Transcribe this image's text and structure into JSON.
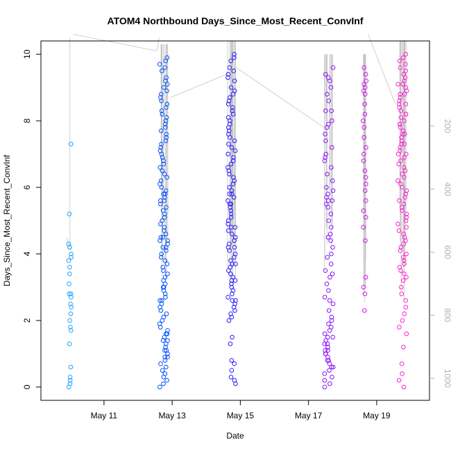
{
  "chart_data": {
    "type": "scatter",
    "title": "ATOM4 Northbound Days_Since_Most_Recent_ConvInf",
    "xlabel": "Date",
    "ylabel": "Days_Since_Most_Recent_ConvInf",
    "x_unit": "days since May 10 00:00",
    "xlim": [
      -0.85,
      10.55
    ],
    "ylim": [
      -0.4,
      10.4
    ],
    "x_ticks": [
      {
        "value": 1,
        "label": "May 11"
      },
      {
        "value": 3,
        "label": "May 13"
      },
      {
        "value": 5,
        "label": "May 15"
      },
      {
        "value": 7,
        "label": "May 17"
      },
      {
        "value": 9,
        "label": "May 19"
      }
    ],
    "y_ticks": [
      {
        "value": 0,
        "label": "0"
      },
      {
        "value": 2,
        "label": "2"
      },
      {
        "value": 4,
        "label": "4"
      },
      {
        "value": 6,
        "label": "6"
      },
      {
        "value": 8,
        "label": "8"
      },
      {
        "value": 10,
        "label": "10"
      }
    ],
    "secondary_axis": {
      "side": "right",
      "color": "#b0b0b0",
      "range": [
        -70,
        1070
      ],
      "reversed": true,
      "ticks": [
        {
          "value": 200,
          "label": "200"
        },
        {
          "value": 400,
          "label": "400"
        },
        {
          "value": 600,
          "label": "600"
        },
        {
          "value": 800,
          "label": "800"
        },
        {
          "value": 1000,
          "label": "1000"
        }
      ]
    },
    "color_scale": [
      "#00a6ff",
      "#0030ff",
      "#2000ff",
      "#8000ff",
      "#cc00ff",
      "#ff00cc"
    ],
    "clusters": [
      {
        "center": 0.0,
        "spread": 0.04,
        "color": "#1aa3ff",
        "y": [
          7.3,
          5.2,
          4.3,
          4.2,
          4.2,
          4.0,
          3.9,
          3.8,
          3.6,
          3.4,
          3.1,
          2.8,
          2.8,
          2.7,
          2.5,
          2.4,
          2.2,
          2.0,
          1.8,
          1.7,
          1.3,
          0.6,
          0.3,
          0.2,
          0.1,
          0.0
        ]
      },
      {
        "center": 2.75,
        "spread": 0.12,
        "color": "#0050ff",
        "y": [
          9.9,
          9.8,
          9.7,
          9.6,
          9.5,
          9.3,
          9.2,
          9.1,
          9.0,
          8.9,
          8.8,
          8.7,
          8.6,
          8.5,
          8.4,
          8.3,
          8.2,
          8.1,
          8.0,
          7.9,
          7.8,
          7.7,
          7.6,
          7.5,
          7.4,
          7.3,
          7.2,
          7.1,
          7.0,
          6.9,
          6.8,
          6.7,
          6.6,
          6.5,
          6.4,
          6.3,
          6.2,
          6.1,
          6.0,
          5.9,
          5.8,
          5.7,
          5.6,
          5.5,
          5.4,
          5.3,
          5.2,
          5.1,
          5.0,
          4.9,
          4.8,
          4.7,
          4.6,
          4.5,
          4.4,
          4.3,
          4.2,
          4.1,
          4.0,
          3.9,
          3.8,
          3.7,
          3.6,
          3.5,
          3.4,
          3.3,
          3.2,
          3.1,
          3.0,
          2.9,
          2.8,
          2.7,
          2.6,
          2.5,
          2.4,
          2.3,
          2.2,
          2.1,
          2.0,
          1.9,
          1.8,
          1.7,
          1.6,
          1.5,
          1.4,
          1.3,
          1.2,
          1.1,
          1.0,
          0.9,
          0.8,
          0.7,
          0.6,
          0.5,
          0.4,
          0.3,
          0.2,
          0.1,
          0.0,
          5.8,
          5.6,
          4.5,
          4.4,
          4.2,
          3.0,
          2.6,
          1.6,
          1.4,
          1.1,
          0.9
        ]
      },
      {
        "center": 4.75,
        "spread": 0.12,
        "color": "#2a1aff",
        "y": [
          10.0,
          9.9,
          9.8,
          9.6,
          9.5,
          9.4,
          9.3,
          9.2,
          9.0,
          8.9,
          8.8,
          8.7,
          8.6,
          8.5,
          8.4,
          8.3,
          8.2,
          8.1,
          8.0,
          7.9,
          7.8,
          7.7,
          7.6,
          7.5,
          7.4,
          7.3,
          7.2,
          7.1,
          7.0,
          6.9,
          6.8,
          6.7,
          6.6,
          6.5,
          6.4,
          6.3,
          6.2,
          6.1,
          6.0,
          5.9,
          5.8,
          5.7,
          5.6,
          5.5,
          5.4,
          5.3,
          5.2,
          5.1,
          5.0,
          4.9,
          4.8,
          4.7,
          4.6,
          4.5,
          4.4,
          4.3,
          4.2,
          4.1,
          4.0,
          3.9,
          3.8,
          3.7,
          3.6,
          3.5,
          3.4,
          3.3,
          3.2,
          3.1,
          3.0,
          2.9,
          2.8,
          2.7,
          2.6,
          2.5,
          2.4,
          2.3,
          2.2,
          2.1,
          2.0,
          1.5,
          1.3,
          0.8,
          0.7,
          0.5,
          0.3,
          0.2,
          0.1,
          5.8,
          5.5,
          4.8,
          4.2,
          3.7,
          3.2,
          2.6
        ]
      },
      {
        "center": 7.6,
        "spread": 0.13,
        "color": "#8a10ff",
        "y": [
          9.6,
          9.4,
          9.2,
          9.0,
          8.8,
          8.6,
          8.3,
          8.0,
          7.8,
          7.6,
          7.4,
          7.2,
          7.0,
          6.8,
          6.6,
          6.4,
          6.2,
          6.0,
          5.9,
          5.8,
          5.7,
          5.6,
          5.5,
          5.4,
          5.2,
          5.0,
          4.8,
          4.6,
          4.4,
          4.2,
          4.0,
          3.9,
          3.7,
          3.5,
          3.3,
          3.1,
          2.9,
          2.7,
          2.5,
          2.3,
          2.1,
          2.0,
          1.9,
          1.8,
          1.7,
          1.6,
          1.5,
          1.4,
          1.3,
          1.2,
          1.1,
          1.0,
          0.9,
          0.8,
          0.7,
          0.6,
          0.5,
          0.4,
          0.3,
          0.2,
          0.1,
          0.0,
          1.5,
          1.3,
          1.1,
          1.0,
          0.8,
          0.6,
          2.6,
          3.4,
          4.5,
          5.6,
          6.9,
          8.3,
          7.9,
          9.3
        ]
      },
      {
        "center": 8.65,
        "spread": 0.05,
        "color": "#d010f0",
        "y": [
          9.6,
          9.4,
          9.2,
          9.1,
          9.0,
          8.9,
          8.8,
          8.5,
          8.2,
          8.0,
          7.8,
          7.5,
          7.2,
          7.0,
          6.8,
          6.5,
          6.3,
          6.1,
          5.9,
          5.6,
          5.3,
          5.1,
          4.8,
          4.4,
          3.3,
          3.0,
          2.8,
          2.3
        ]
      },
      {
        "center": 9.75,
        "spread": 0.13,
        "color": "#ff20d0",
        "y": [
          10.0,
          9.9,
          9.8,
          9.7,
          9.6,
          9.5,
          9.4,
          9.3,
          9.2,
          9.1,
          9.0,
          8.9,
          8.8,
          8.7,
          8.6,
          8.5,
          8.4,
          8.3,
          8.2,
          8.1,
          8.0,
          7.9,
          7.8,
          7.7,
          7.6,
          7.5,
          7.4,
          7.3,
          7.2,
          7.1,
          7.0,
          6.9,
          6.8,
          6.7,
          6.6,
          6.5,
          6.4,
          6.3,
          6.2,
          6.1,
          6.0,
          5.9,
          5.8,
          5.7,
          5.6,
          5.5,
          5.4,
          5.3,
          5.2,
          5.1,
          5.0,
          4.9,
          4.8,
          4.7,
          4.6,
          4.5,
          4.4,
          4.3,
          4.2,
          4.1,
          4.0,
          3.9,
          3.8,
          3.7,
          3.6,
          3.5,
          3.4,
          3.3,
          3.2,
          3.0,
          2.8,
          2.6,
          2.4,
          2.2,
          2.0,
          1.8,
          1.6,
          1.2,
          0.7,
          0.4,
          0.2,
          0.0,
          8.5,
          8.2,
          7.9,
          7.6,
          7.3,
          7.0,
          8.8,
          9.1
        ]
      }
    ],
    "tracks": [
      {
        "name": "overview-track",
        "points": [
          [
            -0.1,
            4.5
          ],
          [
            0.0,
            4.2
          ],
          [
            0.0,
            6.5
          ],
          [
            0.0,
            10.5
          ]
        ]
      },
      {
        "name": "connector-track-1",
        "points": [
          [
            0.1,
            10.6
          ],
          [
            2.55,
            10.1
          ],
          [
            2.62,
            10.5
          ]
        ]
      },
      {
        "name": "connector-track-2",
        "points": [
          [
            2.95,
            8.7
          ],
          [
            4.6,
            9.4
          ],
          [
            4.88,
            9.6
          ],
          [
            7.45,
            7.8
          ]
        ]
      },
      {
        "name": "connector-track-3",
        "points": [
          [
            8.75,
            10.6
          ],
          [
            9.55,
            8.5
          ]
        ]
      }
    ]
  }
}
